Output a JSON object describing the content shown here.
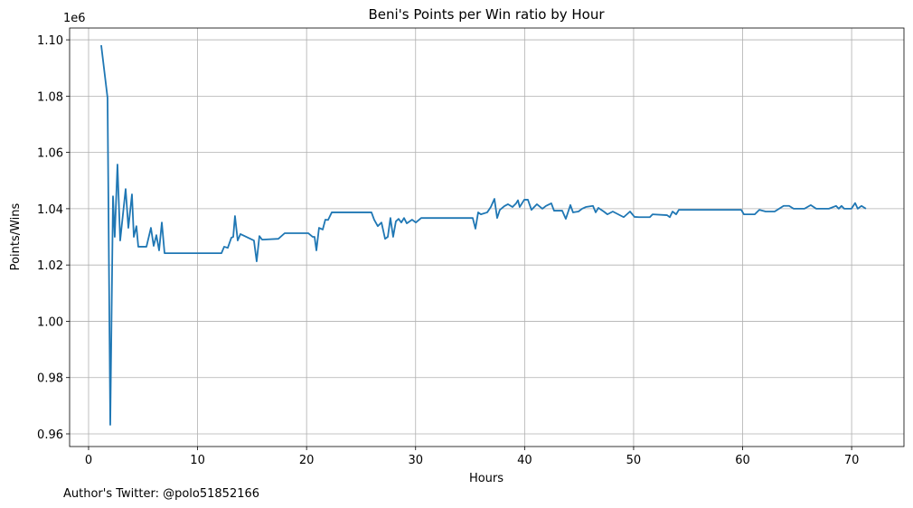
{
  "chart_data": {
    "type": "line",
    "title": "Beni's Points per Win ratio by Hour",
    "x_label": "Hours",
    "y_label": "Points/Wins",
    "y_offset_label": "1e6",
    "footer": "Author's Twitter: @polo51852166",
    "color": "#1f77b4",
    "grid": true,
    "xlim": [
      -1.74,
      74.8
    ],
    "ylim": [
      0.9555,
      1.1042
    ],
    "xticks": [
      0,
      10,
      20,
      30,
      40,
      50,
      60,
      70
    ],
    "yticks": [
      0.96,
      0.98,
      {
        "value": 1,
        "label": "1.00"
      },
      1.02,
      1.04,
      1.06,
      1.08,
      {
        "value": 1.1,
        "label": "1.10"
      }
    ],
    "x": [
      1.16,
      1.74,
      1.99,
      2.24,
      2.4,
      2.65,
      2.9,
      3.4,
      3.65,
      3.98,
      4.15,
      4.39,
      4.56,
      5.31,
      5.72,
      5.97,
      6.22,
      6.47,
      6.72,
      6.97,
      12.19,
      12.44,
      12.77,
      13.1,
      13.27,
      13.43,
      13.68,
      13.93,
      15.17,
      15.42,
      15.67,
      15.92,
      17.41,
      17.99,
      20.15,
      20.56,
      20.73,
      20.9,
      21.14,
      21.48,
      21.72,
      21.97,
      22.31,
      25.95,
      26.2,
      26.53,
      26.87,
      27.2,
      27.45,
      27.69,
      27.94,
      28.19,
      28.44,
      28.69,
      28.94,
      29.19,
      29.68,
      30.02,
      30.51,
      35.24,
      35.49,
      35.74,
      35.99,
      36.57,
      36.9,
      37.23,
      37.48,
      37.73,
      38.14,
      38.47,
      38.89,
      39.22,
      39.39,
      39.55,
      39.97,
      40.3,
      40.63,
      41.13,
      41.63,
      41.96,
      42.45,
      42.7,
      43.45,
      43.78,
      44.2,
      44.44,
      44.94,
      45.27,
      45.61,
      46.27,
      46.52,
      46.77,
      47.26,
      47.6,
      48.09,
      48.59,
      49.09,
      49.67,
      50.08,
      50.5,
      50.91,
      51.49,
      51.74,
      53.07,
      53.32,
      53.57,
      53.9,
      54.15,
      59.87,
      60.12,
      61.11,
      61.53,
      62.11,
      62.94,
      63.35,
      63.76,
      64.26,
      64.68,
      65.67,
      66.25,
      66.75,
      67.91,
      68.57,
      68.82,
      69.07,
      69.32,
      69.98,
      70.32,
      70.56,
      70.9,
      71.31
    ],
    "values": [
      1.0981,
      1.0794,
      0.9632,
      1.0444,
      1.03,
      1.0557,
      1.0287,
      1.047,
      1.0332,
      1.0451,
      1.03,
      1.0338,
      1.0265,
      1.0265,
      1.0332,
      1.0268,
      1.0306,
      1.0252,
      1.0351,
      1.0242,
      1.0242,
      1.0265,
      1.0261,
      1.0297,
      1.03,
      1.0374,
      1.0287,
      1.031,
      1.0287,
      1.0213,
      1.0303,
      1.029,
      1.0293,
      1.0313,
      1.0313,
      1.03,
      1.03,
      1.0252,
      1.0332,
      1.0326,
      1.0361,
      1.036,
      1.0387,
      1.0387,
      1.0361,
      1.0338,
      1.0351,
      1.0293,
      1.03,
      1.0367,
      1.03,
      1.0355,
      1.0364,
      1.0351,
      1.0367,
      1.0348,
      1.0361,
      1.0351,
      1.0367,
      1.0367,
      1.0329,
      1.0387,
      1.038,
      1.0387,
      1.0406,
      1.0435,
      1.0367,
      1.0396,
      1.0409,
      1.0416,
      1.0406,
      1.0419,
      1.043,
      1.0406,
      1.0432,
      1.0432,
      1.0396,
      1.0416,
      1.04,
      1.041,
      1.0419,
      1.0393,
      1.0393,
      1.0364,
      1.0413,
      1.0387,
      1.039,
      1.04,
      1.0406,
      1.041,
      1.0387,
      1.0403,
      1.039,
      1.038,
      1.039,
      1.038,
      1.037,
      1.039,
      1.0371,
      1.037,
      1.037,
      1.037,
      1.038,
      1.0377,
      1.037,
      1.039,
      1.038,
      1.0396,
      1.0396,
      1.038,
      1.038,
      1.0396,
      1.039,
      1.039,
      1.04,
      1.041,
      1.041,
      1.04,
      1.04,
      1.0413,
      1.04,
      1.04,
      1.041,
      1.04,
      1.041,
      1.04,
      1.04,
      1.042,
      1.04,
      1.041,
      1.04
    ]
  }
}
